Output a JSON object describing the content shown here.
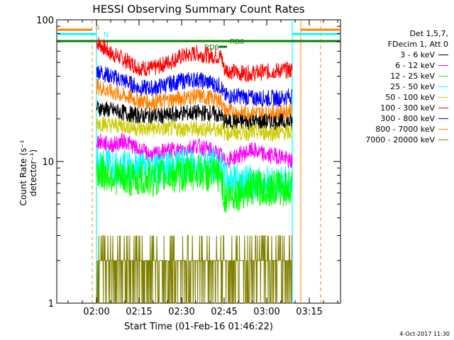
{
  "title": "HESSI Observing Summary Count Rates",
  "xlabel": "Start Time (01-Feb-16 01:46:22)",
  "ylabel": "Count Rate (s⁻¹ detector⁻¹)",
  "footer_date": "4-Oct-2017 11:30",
  "legend": {
    "header1": "Det 1,5,7,",
    "header2": "FDecim 1, Att 0",
    "entries": [
      {
        "label": "3 - 6 keV",
        "color": "#000000"
      },
      {
        "label": "6 - 12 keV",
        "color": "#ff00ff"
      },
      {
        "label": "12 - 25 keV",
        "color": "#00ff00"
      },
      {
        "label": "25 - 50 keV",
        "color": "#00ffff"
      },
      {
        "label": "50 - 100 keV",
        "color": "#cccc00"
      },
      {
        "label": "100 - 300 keV",
        "color": "#ff0000"
      },
      {
        "label": "300 - 800 keV",
        "color": "#0000ff"
      },
      {
        "label": "800 - 7000 keV",
        "color": "#ff8000"
      },
      {
        "label": "7000 - 20000 keV",
        "color": "#808000"
      }
    ]
  },
  "chart_data": {
    "type": "line",
    "x_unit": "UT time 01-Feb-16",
    "xlim": [
      "01:46",
      "03:26"
    ],
    "y_scale": "log",
    "ylim": [
      1,
      100
    ],
    "x_ticks": [
      "02:00",
      "02:15",
      "02:30",
      "02:45",
      "03:00",
      "03:15"
    ],
    "y_ticks": [
      "1",
      "10",
      "100"
    ],
    "grid": false,
    "legend_position": "right",
    "data_window": [
      "02:00",
      "03:09"
    ],
    "series": [
      {
        "name": "100 - 300 keV",
        "color": "#ff0000",
        "x": [
          "02:00",
          "02:05",
          "02:10",
          "02:15",
          "02:20",
          "02:25",
          "02:30",
          "02:35",
          "02:40",
          "02:44",
          "02:45",
          "02:50",
          "02:55",
          "03:00",
          "03:05",
          "03:08"
        ],
        "values": [
          70,
          58,
          52,
          46,
          45,
          50,
          55,
          58,
          56,
          55,
          45,
          42,
          42,
          43,
          44,
          44
        ]
      },
      {
        "name": "300 - 800 keV",
        "color": "#0000ff",
        "x": [
          "02:00",
          "02:05",
          "02:10",
          "02:15",
          "02:20",
          "02:25",
          "02:30",
          "02:35",
          "02:40",
          "02:44",
          "02:45",
          "02:50",
          "02:55",
          "03:00",
          "03:05",
          "03:08"
        ],
        "values": [
          44,
          40,
          37,
          33,
          33,
          35,
          37,
          38,
          36,
          34,
          29,
          29,
          28,
          28,
          28,
          29
        ]
      },
      {
        "name": "800 - 7000 keV",
        "color": "#ff8000",
        "x": [
          "02:00",
          "02:05",
          "02:10",
          "02:15",
          "02:20",
          "02:25",
          "02:30",
          "02:35",
          "02:40",
          "02:44",
          "02:45",
          "02:50",
          "02:55",
          "03:00",
          "03:05",
          "03:08"
        ],
        "values": [
          34,
          31,
          29,
          27,
          26,
          27,
          28,
          29,
          28,
          27,
          23,
          22,
          22,
          22,
          22,
          23
        ]
      },
      {
        "name": "3 - 6 keV",
        "color": "#000000",
        "x": [
          "02:00",
          "02:05",
          "02:10",
          "02:15",
          "02:20",
          "02:25",
          "02:30",
          "02:35",
          "02:40",
          "02:44",
          "02:45",
          "02:50",
          "02:55",
          "03:00",
          "03:05",
          "03:08"
        ],
        "values": [
          24,
          23,
          22,
          21,
          21,
          21,
          22,
          22,
          22,
          21,
          19,
          19,
          19,
          19,
          19,
          19
        ]
      },
      {
        "name": "50 - 100 keV",
        "color": "#cccc00",
        "x": [
          "02:00",
          "02:05",
          "02:10",
          "02:15",
          "02:20",
          "02:25",
          "02:30",
          "02:35",
          "02:40",
          "02:44",
          "02:45",
          "02:50",
          "02:55",
          "03:00",
          "03:05",
          "03:08"
        ],
        "values": [
          19,
          18,
          18,
          17,
          17,
          17,
          17,
          17,
          17,
          17,
          16,
          16,
          16,
          16,
          16,
          16
        ]
      },
      {
        "name": "6 - 12 keV",
        "color": "#ff00ff",
        "x": [
          "02:00",
          "02:05",
          "02:10",
          "02:15",
          "02:20",
          "02:25",
          "02:30",
          "02:35",
          "02:40",
          "02:44",
          "02:45",
          "02:50",
          "02:55",
          "03:00",
          "03:05",
          "03:08"
        ],
        "values": [
          14,
          13,
          14,
          12,
          11,
          12,
          12,
          13,
          12,
          11,
          10,
          11,
          12,
          11,
          11,
          10
        ]
      },
      {
        "name": "25 - 50 keV",
        "color": "#00ffff",
        "x": [
          "02:00",
          "02:05",
          "02:10",
          "02:15",
          "02:20",
          "02:25",
          "02:30",
          "02:35",
          "02:40",
          "02:44",
          "02:45",
          "02:50",
          "02:55",
          "03:00",
          "03:05",
          "03:08"
        ],
        "values": [
          10,
          9.5,
          9,
          9,
          9,
          9,
          9.5,
          9.5,
          9.5,
          9,
          7.5,
          7.5,
          7,
          7,
          7,
          7
        ]
      },
      {
        "name": "12 - 25 keV",
        "color": "#00ff00",
        "x": [
          "02:00",
          "02:05",
          "02:10",
          "02:15",
          "02:20",
          "02:25",
          "02:30",
          "02:35",
          "02:40",
          "02:44",
          "02:45",
          "02:50",
          "02:55",
          "03:00",
          "03:05",
          "03:08"
        ],
        "values": [
          8.5,
          8,
          7.5,
          7.5,
          7.5,
          8,
          8,
          8.5,
          8,
          8,
          5.5,
          6,
          6.5,
          6.5,
          6.5,
          6.5
        ]
      },
      {
        "name": "7000 - 20000 keV",
        "color": "#808000",
        "x": [
          "02:00",
          "02:05",
          "02:10",
          "02:15",
          "02:20",
          "02:25",
          "02:30",
          "02:35",
          "02:40",
          "02:44",
          "02:45",
          "02:50",
          "02:55",
          "03:00",
          "03:05",
          "03:08"
        ],
        "values": [
          2,
          2,
          2,
          2,
          2,
          2,
          3,
          2,
          2,
          3,
          2,
          2,
          2,
          2,
          2,
          2
        ]
      }
    ],
    "annotations": [
      {
        "label": "S",
        "color": "#ff8000"
      },
      {
        "label": "N",
        "color": "#00ffff"
      },
      {
        "label": "RD6",
        "color": "#008000"
      },
      {
        "label": "RD0",
        "color": "#008000"
      }
    ]
  }
}
